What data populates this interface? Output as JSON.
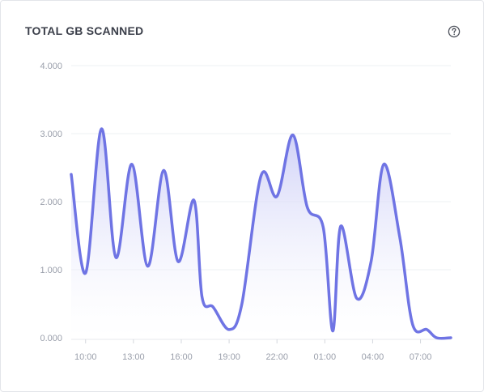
{
  "card": {
    "title": "TOTAL GB SCANNED",
    "help_icon": "question-circle-icon"
  },
  "colors": {
    "line": "#6f74e4",
    "fill_top": "#c9cbf6",
    "fill_bottom": "#ffffff",
    "grid": "#eef0f3",
    "tick": "#9a9fab"
  },
  "chart_data": {
    "type": "area",
    "title": "TOTAL GB SCANNED",
    "xlabel": "",
    "ylabel": "",
    "y_ticks": [
      "0.000",
      "1.000",
      "2.000",
      "3.000",
      "4.000"
    ],
    "ylim": [
      0,
      4
    ],
    "x_ticks": [
      {
        "label": "10:00",
        "hour": 10
      },
      {
        "label": "13:00",
        "hour": 13
      },
      {
        "label": "16:00",
        "hour": 16
      },
      {
        "label": "19:00",
        "hour": 19
      },
      {
        "label": "22:00",
        "hour": 22
      },
      {
        "label": "01:00",
        "hour": 25
      },
      {
        "label": "04:00",
        "hour": 28
      },
      {
        "label": "07:00",
        "hour": 31
      }
    ],
    "xlim": [
      9.1,
      32.9
    ],
    "grid": true,
    "series": [
      {
        "x": [
          9.1,
          10.0,
          11.0,
          11.9,
          12.9,
          13.9,
          14.9,
          15.8,
          16.8,
          17.3,
          18.0,
          19.0,
          19.8,
          21.0,
          22.0,
          23.0,
          23.9,
          24.9,
          25.5,
          26.0,
          27.0,
          27.9,
          28.7,
          29.7,
          30.5,
          31.4,
          32.0,
          32.9
        ],
        "values": [
          2.4,
          0.95,
          3.07,
          1.18,
          2.55,
          1.05,
          2.46,
          1.12,
          2.02,
          0.6,
          0.45,
          0.12,
          0.5,
          2.38,
          2.08,
          2.98,
          1.92,
          1.62,
          0.1,
          1.64,
          0.58,
          1.12,
          2.55,
          1.48,
          0.2,
          0.12,
          0.0,
          0.0
        ]
      }
    ]
  }
}
